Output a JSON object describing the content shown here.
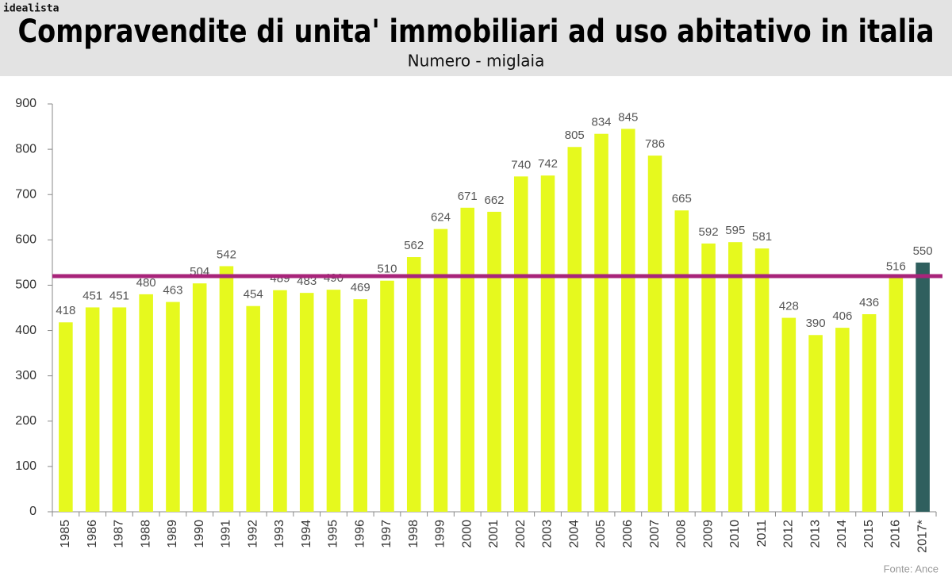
{
  "brand": "idealista",
  "chart_data": {
    "type": "bar",
    "title": "Compravendite di unita' immobiliari ad uso abitativo in italia",
    "subtitle": "Numero - miglaia",
    "source": "Fonte: Ance",
    "categories": [
      "1985",
      "1986",
      "1987",
      "1988",
      "1989",
      "1990",
      "1991",
      "1992",
      "1993",
      "1994",
      "1995",
      "1996",
      "1997",
      "1998",
      "1999",
      "2000",
      "2001",
      "2002",
      "2003",
      "2004",
      "2005",
      "2006",
      "2007",
      "2008",
      "2009",
      "2010",
      "2011",
      "2012",
      "2013",
      "2014",
      "2015",
      "2016",
      "2017*"
    ],
    "values": [
      418,
      451,
      451,
      480,
      463,
      504,
      542,
      454,
      489,
      483,
      490,
      469,
      510,
      562,
      624,
      671,
      662,
      740,
      742,
      805,
      834,
      845,
      786,
      665,
      592,
      595,
      581,
      428,
      390,
      406,
      436,
      516,
      550
    ],
    "colors": [
      "#e6f91e",
      "#e6f91e",
      "#e6f91e",
      "#e6f91e",
      "#e6f91e",
      "#e6f91e",
      "#e6f91e",
      "#e6f91e",
      "#e6f91e",
      "#e6f91e",
      "#e6f91e",
      "#e6f91e",
      "#e6f91e",
      "#e6f91e",
      "#e6f91e",
      "#e6f91e",
      "#e6f91e",
      "#e6f91e",
      "#e6f91e",
      "#e6f91e",
      "#e6f91e",
      "#e6f91e",
      "#e6f91e",
      "#e6f91e",
      "#e6f91e",
      "#e6f91e",
      "#e6f91e",
      "#e6f91e",
      "#e6f91e",
      "#e6f91e",
      "#e6f91e",
      "#e6f91e",
      "#2f5f5e"
    ],
    "ylim": [
      0,
      900
    ],
    "yticks": [
      0,
      100,
      200,
      300,
      400,
      500,
      600,
      700,
      800,
      900
    ],
    "reference_line": {
      "value": 520,
      "color": "#a8247a"
    }
  }
}
